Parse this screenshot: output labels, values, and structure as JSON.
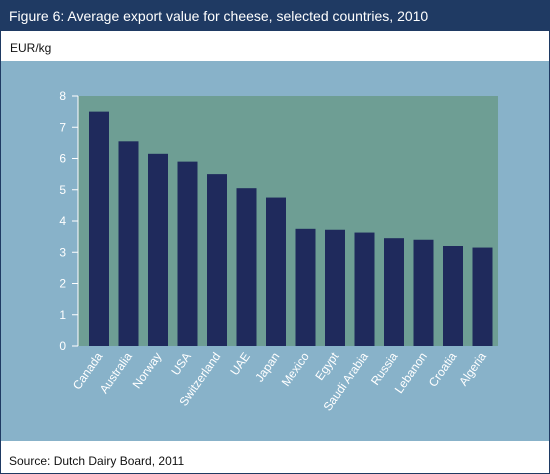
{
  "figure": {
    "title": "Figure 6: Average export value for cheese, selected countries, 2010",
    "unit": "EUR/kg",
    "source": "Source: Dutch Dairy Board, 2011"
  },
  "colors": {
    "header": "#1f3a63",
    "panel": "#88b2c9",
    "plot_area": "#6e9e94",
    "bar": "#1f2a5c",
    "axis_text": "#ffffff"
  },
  "chart_data": {
    "type": "bar",
    "title": "Figure 6: Average export value for cheese, selected countries, 2010",
    "xlabel": "",
    "ylabel": "EUR/kg",
    "ylim": [
      0,
      8
    ],
    "yticks": [
      "0",
      "1",
      "2",
      "3",
      "4",
      "5",
      "6",
      "7",
      "8"
    ],
    "grid": false,
    "categories": [
      "Canada",
      "Australia",
      "Norway",
      "USA",
      "Switzerland",
      "UAE",
      "Japan",
      "Mexico",
      "Egypt",
      "Saudi Arabia",
      "Russia",
      "Lebanon",
      "Croatia",
      "Algeria"
    ],
    "values": [
      7.5,
      6.55,
      6.15,
      5.9,
      5.5,
      5.05,
      4.75,
      3.75,
      3.72,
      3.63,
      3.45,
      3.4,
      3.2,
      3.15
    ]
  }
}
